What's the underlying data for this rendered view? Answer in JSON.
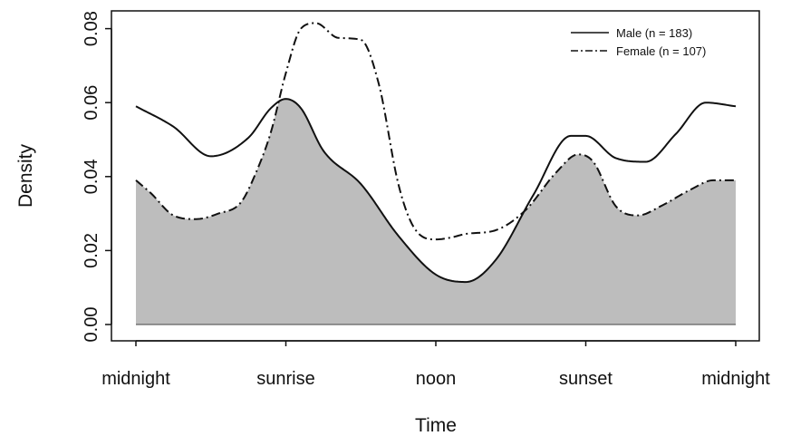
{
  "chart_data": {
    "type": "area",
    "title": "",
    "xlabel": "Time",
    "ylabel": "Density",
    "ylim": [
      0,
      0.085
    ],
    "xlim": [
      0,
      4
    ],
    "x_ticks": [
      0,
      1,
      2,
      3,
      4
    ],
    "x_tick_labels": [
      "midnight",
      "sunrise",
      "noon",
      "sunset",
      "midnight"
    ],
    "y_ticks": [
      0,
      0.02,
      0.04,
      0.06,
      0.08
    ],
    "y_tick_labels": [
      "0.00",
      "0.02",
      "0.04",
      "0.06",
      "0.08"
    ],
    "legend_position": "top-right",
    "grid": false,
    "overlap_fill_color": "#bdbdbd",
    "series": [
      {
        "name": "Male (n = 183)",
        "line_style": "solid",
        "x": [
          0,
          0.25,
          0.5,
          0.75,
          0.9,
          1.0,
          1.1,
          1.25,
          1.5,
          1.75,
          2.0,
          2.2,
          2.4,
          2.65,
          2.9,
          3.0,
          3.2,
          3.4,
          3.6,
          3.8,
          4.0
        ],
        "values": [
          0.059,
          0.0535,
          0.0455,
          0.0505,
          0.0585,
          0.061,
          0.0585,
          0.047,
          0.038,
          0.024,
          0.0135,
          0.0115,
          0.0175,
          0.035,
          0.051,
          0.051,
          0.045,
          0.044,
          0.0515,
          0.06,
          0.059
        ]
      },
      {
        "name": "Female (n = 107)",
        "line_style": "dashdot",
        "x": [
          0,
          0.1,
          0.25,
          0.4,
          0.55,
          0.7,
          0.8,
          0.9,
          1.0,
          1.1,
          1.2,
          1.35,
          1.5,
          1.62,
          1.75,
          1.85,
          2.0,
          2.1,
          2.2,
          2.4,
          2.6,
          2.8,
          2.95,
          3.05,
          3.2,
          3.35,
          3.5,
          3.7,
          3.85,
          4.0
        ],
        "values": [
          0.039,
          0.0355,
          0.0295,
          0.0285,
          0.03,
          0.033,
          0.041,
          0.052,
          0.068,
          0.08,
          0.0815,
          0.0775,
          0.077,
          0.065,
          0.038,
          0.0265,
          0.023,
          0.0235,
          0.0245,
          0.0255,
          0.031,
          0.041,
          0.046,
          0.044,
          0.032,
          0.0295,
          0.032,
          0.0365,
          0.039,
          0.039
        ]
      }
    ]
  }
}
